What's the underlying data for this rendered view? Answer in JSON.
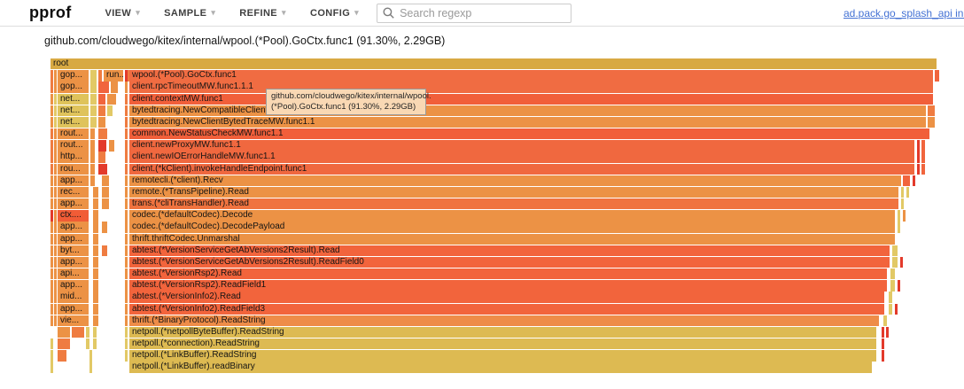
{
  "header": {
    "logo": "pprof",
    "menus": [
      {
        "label": "VIEW"
      },
      {
        "label": "SAMPLE"
      },
      {
        "label": "REFINE"
      },
      {
        "label": "CONFIG"
      }
    ],
    "search": {
      "placeholder": "Search regexp"
    },
    "profile_link": "ad.pack.go_splash_api inuse_sp"
  },
  "title": "github.com/cloudwego/kitex/internal/wpool.(*Pool).GoCtx.func1 (91.30%, 2.29GB)",
  "tooltip": {
    "line1": "github.com/cloudwego/kitex/internal/wpool.",
    "line2": "(*Pool).GoCtx.func1 (91.30%, 2.29GB)"
  },
  "icons": {
    "search": "magnifier",
    "menu_caret": "chevron-down"
  },
  "colors": {
    "link_blue": "#4472d4",
    "tooltip_bg": "#f9d8b4",
    "header_border": "#dedede"
  },
  "flame": {
    "row_pitch": 13.17,
    "palette": {
      "gold": "#d8a943",
      "ngold": "#ddba52",
      "o1": "#ec9245",
      "o2": "#ef7c41",
      "o3": "#f1653d",
      "red": "#e33a2b",
      "yel": "#e2c966",
      "tan": "#dfc35b",
      "r1": "#f06c42",
      "r3": "#f15f3a",
      "r7": "#f0683f",
      "r12": "#f0733f",
      "r13": "#f15c36",
      "r16": "#f2643c",
      "r22": "#ee8c48"
    },
    "rows": [
      [
        [
          0,
          1000,
          "gold",
          "root"
        ]
      ],
      [
        [
          0,
          2,
          "o2"
        ],
        [
          4,
          3,
          "o1"
        ],
        [
          8,
          35,
          "o1",
          "gop..."
        ],
        [
          45,
          7,
          "yel"
        ],
        [
          54,
          4,
          "o2"
        ],
        [
          60,
          22,
          "o1",
          "run..."
        ],
        [
          84,
          2,
          "red"
        ],
        [
          87,
          1,
          "o2"
        ],
        [
          89,
          907,
          "r1",
          "wpool.(*Pool).GoCtx.func1"
        ],
        [
          998,
          5,
          "o3"
        ]
      ],
      [
        [
          0,
          2,
          "o2"
        ],
        [
          4,
          3,
          "o1"
        ],
        [
          8,
          35,
          "o1",
          "gop..."
        ],
        [
          45,
          7,
          "yel"
        ],
        [
          54,
          12,
          "o3"
        ],
        [
          68,
          8,
          "o1"
        ],
        [
          84,
          3,
          "o1"
        ],
        [
          89,
          907,
          "r1",
          "client.rpcTimeoutMW.func1.1.1"
        ]
      ],
      [
        [
          0,
          2,
          "o1"
        ],
        [
          4,
          3,
          "yel"
        ],
        [
          8,
          35,
          "tan",
          "net..."
        ],
        [
          45,
          7,
          "yel"
        ],
        [
          54,
          8,
          "o3"
        ],
        [
          64,
          10,
          "o1"
        ],
        [
          84,
          3,
          "o2"
        ],
        [
          89,
          907,
          "r3",
          "client.contextMW.func1"
        ]
      ],
      [
        [
          0,
          2,
          "o1"
        ],
        [
          4,
          3,
          "yel"
        ],
        [
          8,
          35,
          "tan",
          "net..."
        ],
        [
          45,
          7,
          "yel"
        ],
        [
          54,
          8,
          "o2"
        ],
        [
          64,
          6,
          "yel"
        ],
        [
          84,
          3,
          "o2"
        ],
        [
          89,
          899,
          "o1",
          "bytedtracing.NewCompatibleClientT"
        ],
        [
          990,
          8,
          "o2"
        ]
      ],
      [
        [
          0,
          2,
          "o1"
        ],
        [
          4,
          3,
          "yel"
        ],
        [
          8,
          35,
          "tan",
          "net..."
        ],
        [
          45,
          7,
          "yel"
        ],
        [
          54,
          8,
          "o1"
        ],
        [
          84,
          3,
          "o2"
        ],
        [
          89,
          899,
          "o1",
          "bytedtracing.NewClientBytedTraceMW.func1.1"
        ],
        [
          990,
          8,
          "o1"
        ]
      ],
      [
        [
          0,
          2,
          "o2"
        ],
        [
          4,
          3,
          "o1"
        ],
        [
          8,
          35,
          "o1",
          "rout..."
        ],
        [
          45,
          5,
          "o1"
        ],
        [
          54,
          10,
          "o2"
        ],
        [
          84,
          3,
          "o2"
        ],
        [
          89,
          903,
          "r3",
          "common.NewStatusCheckMW.func1.1"
        ]
      ],
      [
        [
          0,
          2,
          "o2"
        ],
        [
          4,
          3,
          "o1"
        ],
        [
          8,
          35,
          "o1",
          "rout..."
        ],
        [
          45,
          5,
          "o1"
        ],
        [
          54,
          9,
          "red"
        ],
        [
          66,
          6,
          "o1"
        ],
        [
          84,
          3,
          "o2"
        ],
        [
          89,
          886,
          "r7",
          "client.newProxyMW.func1.1"
        ],
        [
          978,
          3,
          "red"
        ],
        [
          983,
          4,
          "o3"
        ]
      ],
      [
        [
          0,
          2,
          "o2"
        ],
        [
          4,
          3,
          "o1"
        ],
        [
          8,
          35,
          "o1",
          "http..."
        ],
        [
          45,
          5,
          "o1"
        ],
        [
          54,
          8,
          "o2"
        ],
        [
          84,
          3,
          "o2"
        ],
        [
          89,
          886,
          "r7",
          "client.newIOErrorHandleMW.func1.1"
        ],
        [
          978,
          3,
          "red"
        ],
        [
          983,
          4,
          "o3"
        ]
      ],
      [
        [
          0,
          2,
          "o2"
        ],
        [
          4,
          3,
          "o1"
        ],
        [
          8,
          35,
          "o1",
          "rou..."
        ],
        [
          45,
          5,
          "o1"
        ],
        [
          54,
          10,
          "red"
        ],
        [
          84,
          3,
          "o2"
        ],
        [
          89,
          886,
          "r7",
          "client.(*kClient).invokeHandleEndpoint.func1"
        ],
        [
          978,
          3,
          "red"
        ],
        [
          983,
          4,
          "o3"
        ]
      ],
      [
        [
          0,
          2,
          "o1"
        ],
        [
          4,
          3,
          "o1"
        ],
        [
          8,
          35,
          "o1",
          "app..."
        ],
        [
          45,
          5,
          "o1"
        ],
        [
          58,
          8,
          "o1"
        ],
        [
          84,
          3,
          "o1"
        ],
        [
          89,
          871,
          "o1",
          "remotecli.(*client).Recv"
        ],
        [
          962,
          8,
          "o3"
        ],
        [
          973,
          3,
          "red"
        ]
      ],
      [
        [
          0,
          2,
          "o1"
        ],
        [
          4,
          3,
          "o1"
        ],
        [
          8,
          35,
          "o1",
          "rec..."
        ],
        [
          48,
          6,
          "o1"
        ],
        [
          58,
          8,
          "o1"
        ],
        [
          84,
          3,
          "o1"
        ],
        [
          89,
          868,
          "o1",
          "remote.(*TransPipeline).Read"
        ],
        [
          960,
          3,
          "yel"
        ],
        [
          966,
          3,
          "yel"
        ]
      ],
      [
        [
          0,
          2,
          "o1"
        ],
        [
          4,
          3,
          "o1"
        ],
        [
          8,
          35,
          "o1",
          "app..."
        ],
        [
          48,
          6,
          "o1"
        ],
        [
          58,
          8,
          "o1"
        ],
        [
          84,
          3,
          "o1"
        ],
        [
          89,
          868,
          "r12",
          "trans.(*cliTransHandler).Read"
        ],
        [
          960,
          3,
          "yel"
        ]
      ],
      [
        [
          0,
          2,
          "red"
        ],
        [
          4,
          3,
          "o1"
        ],
        [
          8,
          35,
          "r13",
          "ctx...."
        ],
        [
          48,
          6,
          "o1"
        ],
        [
          84,
          3,
          "o1"
        ],
        [
          89,
          864,
          "o1",
          "codec.(*defaultCodec).Decode"
        ],
        [
          956,
          3,
          "yel"
        ],
        [
          962,
          3,
          "o1"
        ]
      ],
      [
        [
          0,
          2,
          "o1"
        ],
        [
          4,
          3,
          "o1"
        ],
        [
          8,
          35,
          "o1",
          "app..."
        ],
        [
          48,
          6,
          "o1"
        ],
        [
          58,
          6,
          "o1"
        ],
        [
          84,
          3,
          "o1"
        ],
        [
          89,
          864,
          "o1",
          "codec.(*defaultCodec).DecodePayload"
        ],
        [
          956,
          3,
          "yel"
        ]
      ],
      [
        [
          0,
          2,
          "o1"
        ],
        [
          4,
          3,
          "o1"
        ],
        [
          8,
          35,
          "o1",
          "app..."
        ],
        [
          48,
          6,
          "o1"
        ],
        [
          84,
          3,
          "o1"
        ],
        [
          89,
          864,
          "o1",
          "thrift.thriftCodec.Unmarshal"
        ]
      ],
      [
        [
          0,
          2,
          "o1"
        ],
        [
          4,
          3,
          "o1"
        ],
        [
          8,
          35,
          "o1",
          "byt..."
        ],
        [
          48,
          6,
          "o1"
        ],
        [
          58,
          6,
          "o2"
        ],
        [
          84,
          3,
          "o1"
        ],
        [
          89,
          858,
          "r16",
          "abtest.(*VersionServiceGetAbVersions2Result).Read"
        ],
        [
          950,
          6,
          "yel"
        ]
      ],
      [
        [
          0,
          2,
          "o1"
        ],
        [
          4,
          3,
          "o1"
        ],
        [
          8,
          35,
          "o1",
          "app..."
        ],
        [
          48,
          6,
          "o1"
        ],
        [
          84,
          3,
          "o1"
        ],
        [
          89,
          858,
          "r16",
          "abtest.(*VersionServiceGetAbVersions2Result).ReadField0"
        ],
        [
          950,
          6,
          "yel"
        ],
        [
          959,
          3,
          "red"
        ]
      ],
      [
        [
          0,
          2,
          "o1"
        ],
        [
          4,
          3,
          "o1"
        ],
        [
          8,
          35,
          "o1",
          "api..."
        ],
        [
          48,
          6,
          "o1"
        ],
        [
          84,
          3,
          "o1"
        ],
        [
          89,
          855,
          "r16",
          "abtest.(*VersionRsp2).Read"
        ],
        [
          948,
          5,
          "yel"
        ]
      ],
      [
        [
          0,
          2,
          "o1"
        ],
        [
          4,
          3,
          "o1"
        ],
        [
          8,
          35,
          "o1",
          "app..."
        ],
        [
          48,
          6,
          "o1"
        ],
        [
          84,
          3,
          "o1"
        ],
        [
          89,
          855,
          "r16",
          "abtest.(*VersionRsp2).ReadField1"
        ],
        [
          948,
          5,
          "yel"
        ],
        [
          956,
          3,
          "red"
        ]
      ],
      [
        [
          0,
          2,
          "o1"
        ],
        [
          4,
          3,
          "o1"
        ],
        [
          8,
          35,
          "o1",
          "mid..."
        ],
        [
          48,
          6,
          "o1"
        ],
        [
          84,
          3,
          "o1"
        ],
        [
          89,
          852,
          "r16",
          "abtest.(*VersionInfo2).Read"
        ],
        [
          946,
          4,
          "yel"
        ]
      ],
      [
        [
          0,
          2,
          "o1"
        ],
        [
          4,
          3,
          "o1"
        ],
        [
          8,
          35,
          "o1",
          "app..."
        ],
        [
          48,
          6,
          "o1"
        ],
        [
          84,
          3,
          "o1"
        ],
        [
          89,
          852,
          "r16",
          "abtest.(*VersionInfo2).ReadField3"
        ],
        [
          946,
          4,
          "yel"
        ],
        [
          953,
          3,
          "red"
        ]
      ],
      [
        [
          0,
          2,
          "o1"
        ],
        [
          4,
          3,
          "o1"
        ],
        [
          8,
          35,
          "o1",
          "vie..."
        ],
        [
          48,
          6,
          "o1"
        ],
        [
          84,
          3,
          "o1"
        ],
        [
          89,
          846,
          "r22",
          "thrift.(*BinaryProtocol).ReadString"
        ],
        [
          940,
          4,
          "yel"
        ]
      ],
      [
        [
          8,
          14,
          "o1"
        ],
        [
          24,
          14,
          "o2"
        ],
        [
          40,
          4,
          "yel"
        ],
        [
          48,
          4,
          "yel"
        ],
        [
          84,
          3,
          "yel"
        ],
        [
          89,
          843,
          "ngold",
          "netpoll.(*netpollByteBuffer).ReadString"
        ],
        [
          938,
          3,
          "red"
        ],
        [
          943,
          3,
          "red"
        ]
      ],
      [
        [
          0,
          3,
          "yel"
        ],
        [
          8,
          14,
          "o2"
        ],
        [
          40,
          4,
          "yel"
        ],
        [
          48,
          4,
          "yel"
        ],
        [
          84,
          3,
          "yel"
        ],
        [
          89,
          843,
          "ngold",
          "netpoll.(*connection).ReadString"
        ],
        [
          938,
          3,
          "red"
        ]
      ],
      [
        [
          0,
          3,
          "yel"
        ],
        [
          8,
          10,
          "o2"
        ],
        [
          44,
          3,
          "yel"
        ],
        [
          84,
          3,
          "yel"
        ],
        [
          89,
          843,
          "ngold",
          "netpoll.(*LinkBuffer).ReadString"
        ],
        [
          938,
          3,
          "red"
        ]
      ],
      [
        [
          0,
          2,
          "yel"
        ],
        [
          44,
          3,
          "yel"
        ],
        [
          89,
          838,
          "ngold",
          "netpoll.(*LinkBuffer).readBinary"
        ]
      ]
    ]
  }
}
